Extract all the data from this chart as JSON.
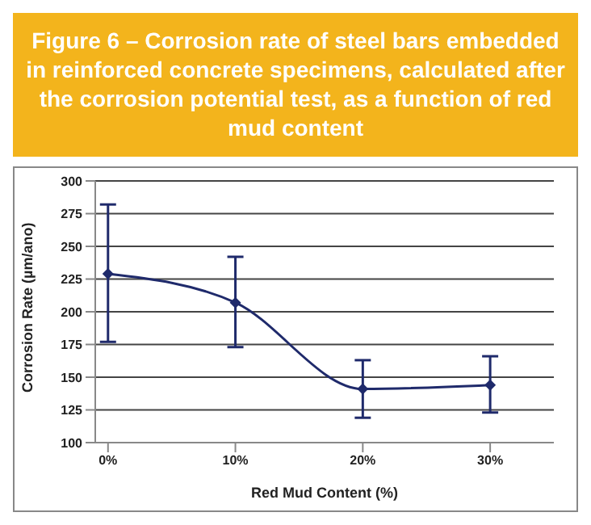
{
  "chart_data": {
    "type": "line",
    "title": "Figure 6 – Corrosion rate of steel bars embedded in reinforced concrete specimens, calculated after the corrosion potential test, as a function of red mud content",
    "xlabel": "Red Mud Content (%)",
    "ylabel": "Corrosion Rate (µm/ano)",
    "x": [
      0,
      10,
      20,
      30
    ],
    "series": [
      {
        "color": "#1f2a6b",
        "values": [
          229,
          207,
          141,
          144
        ],
        "errors": [
          [
            177,
            282
          ],
          [
            173,
            242
          ],
          [
            119,
            163
          ],
          [
            123,
            166
          ]
        ]
      }
    ],
    "xlim": [
      -1,
      35
    ],
    "xticks": [
      {
        "value": 0,
        "label": "0%"
      },
      {
        "value": 10,
        "label": "10%"
      },
      {
        "value": 20,
        "label": "20%"
      },
      {
        "value": 30,
        "label": "30%"
      }
    ],
    "ylim": [
      100,
      300
    ],
    "yticks": [
      100,
      125,
      150,
      175,
      200,
      225,
      250,
      275,
      300
    ],
    "grid": "y",
    "marker": "diamond",
    "line_style": "solid"
  }
}
